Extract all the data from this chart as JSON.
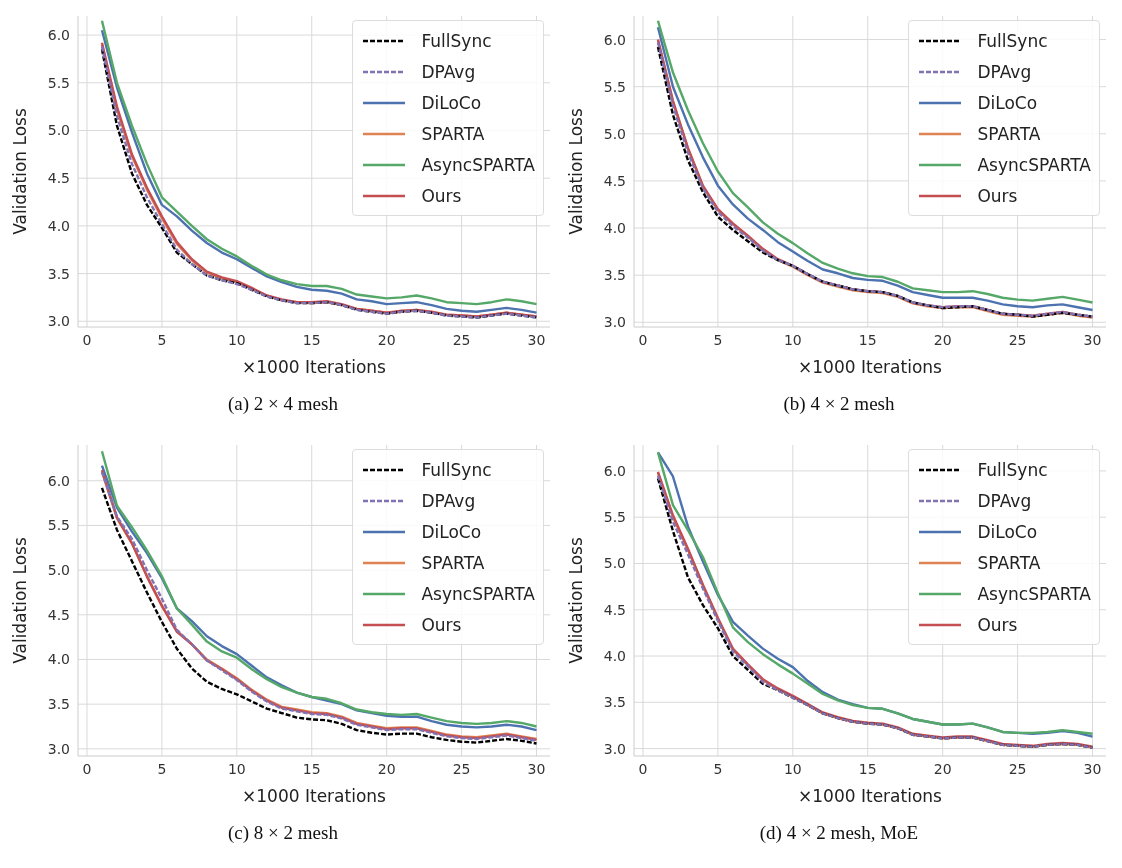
{
  "chart_data": [
    {
      "type": "line",
      "title": "(a) 2 × 4 mesh",
      "xlabel": "×1000 Iterations",
      "ylabel": "Validation Loss",
      "grid": true,
      "legend": "top right",
      "x": [
        1,
        2,
        3,
        4,
        5,
        6,
        7,
        8,
        9,
        10,
        11,
        12,
        13,
        14,
        15,
        16,
        17,
        18,
        19,
        20,
        21,
        22,
        23,
        24,
        25,
        26,
        27,
        28,
        29,
        30
      ],
      "xlim": [
        -0.6,
        30.9
      ],
      "xticks": [
        0,
        5,
        10,
        15,
        20,
        25,
        30
      ],
      "ylim": [
        2.94,
        6.2
      ],
      "yticks": [
        {
          "value": 3,
          "label": "3.0"
        },
        {
          "value": 3.5,
          "label": "3.5"
        },
        {
          "value": 4,
          "label": "4.0"
        },
        {
          "value": 4.5,
          "label": "4.5"
        },
        {
          "value": 5,
          "label": "5.0"
        },
        {
          "value": 5.5,
          "label": "5.5"
        },
        {
          "value": 6,
          "label": "6.0"
        }
      ],
      "series": [
        {
          "name": "FullSync",
          "color": "#000000",
          "line_style": "dashed",
          "values": [
            5.85,
            5.05,
            4.55,
            4.22,
            3.98,
            3.72,
            3.6,
            3.48,
            3.43,
            3.4,
            3.33,
            3.26,
            3.22,
            3.19,
            3.19,
            3.2,
            3.17,
            3.12,
            3.1,
            3.08,
            3.1,
            3.11,
            3.09,
            3.06,
            3.05,
            3.04,
            3.06,
            3.08,
            3.06,
            3.04
          ]
        },
        {
          "name": "DPAvg",
          "color": "#8172b3",
          "line_style": "dashed",
          "values": [
            5.88,
            5.15,
            4.65,
            4.3,
            4.02,
            3.75,
            3.6,
            3.48,
            3.43,
            3.39,
            3.33,
            3.26,
            3.22,
            3.19,
            3.19,
            3.2,
            3.17,
            3.12,
            3.1,
            3.08,
            3.1,
            3.11,
            3.09,
            3.06,
            3.05,
            3.04,
            3.06,
            3.08,
            3.06,
            3.04
          ]
        },
        {
          "name": "DiLoCo",
          "color": "#4c72b0",
          "line_style": "solid",
          "values": [
            6.05,
            5.45,
            4.98,
            4.55,
            4.22,
            4.1,
            3.95,
            3.82,
            3.72,
            3.65,
            3.56,
            3.47,
            3.41,
            3.36,
            3.33,
            3.32,
            3.29,
            3.23,
            3.21,
            3.18,
            3.19,
            3.2,
            3.17,
            3.13,
            3.11,
            3.1,
            3.12,
            3.14,
            3.12,
            3.09
          ]
        },
        {
          "name": "SPARTA",
          "color": "#dd8452",
          "line_style": "solid",
          "values": [
            5.9,
            5.22,
            4.73,
            4.38,
            4.08,
            3.81,
            3.64,
            3.51,
            3.45,
            3.41,
            3.34,
            3.27,
            3.22,
            3.2,
            3.19,
            3.2,
            3.17,
            3.13,
            3.11,
            3.09,
            3.1,
            3.12,
            3.09,
            3.07,
            3.06,
            3.05,
            3.07,
            3.09,
            3.07,
            3.05
          ]
        },
        {
          "name": "AsyncSPARTA",
          "color": "#55a868",
          "line_style": "solid",
          "values": [
            6.15,
            5.5,
            5.05,
            4.65,
            4.3,
            4.15,
            4.0,
            3.86,
            3.76,
            3.68,
            3.58,
            3.49,
            3.43,
            3.39,
            3.37,
            3.37,
            3.34,
            3.28,
            3.26,
            3.24,
            3.25,
            3.27,
            3.24,
            3.2,
            3.19,
            3.18,
            3.2,
            3.23,
            3.21,
            3.18
          ]
        },
        {
          "name": "Ours",
          "color": "#c44e52",
          "line_style": "solid",
          "values": [
            5.92,
            5.25,
            4.75,
            4.4,
            4.1,
            3.83,
            3.65,
            3.52,
            3.46,
            3.42,
            3.35,
            3.27,
            3.23,
            3.2,
            3.2,
            3.21,
            3.18,
            3.13,
            3.11,
            3.09,
            3.11,
            3.12,
            3.1,
            3.07,
            3.06,
            3.05,
            3.07,
            3.09,
            3.07,
            3.05
          ]
        }
      ]
    },
    {
      "type": "line",
      "title": "(b) 4 × 2 mesh",
      "xlabel": "×1000 Iterations",
      "ylabel": "Validation Loss",
      "grid": true,
      "legend": "top right",
      "x": [
        1,
        2,
        3,
        4,
        5,
        6,
        7,
        8,
        9,
        10,
        11,
        12,
        13,
        14,
        15,
        16,
        17,
        18,
        19,
        20,
        21,
        22,
        23,
        24,
        25,
        26,
        27,
        28,
        29,
        30
      ],
      "xlim": [
        -0.6,
        30.9
      ],
      "xticks": [
        0,
        5,
        10,
        15,
        20,
        25,
        30
      ],
      "ylim": [
        2.95,
        6.25
      ],
      "yticks": [
        {
          "value": 3,
          "label": "3.0"
        },
        {
          "value": 3.5,
          "label": "3.5"
        },
        {
          "value": 4,
          "label": "4.0"
        },
        {
          "value": 4.5,
          "label": "4.5"
        },
        {
          "value": 5,
          "label": "5.0"
        },
        {
          "value": 5.5,
          "label": "5.5"
        },
        {
          "value": 6,
          "label": "6.0"
        }
      ],
      "series": [
        {
          "name": "FullSync",
          "color": "#000000",
          "line_style": "dashed",
          "values": [
            5.92,
            5.2,
            4.72,
            4.38,
            4.12,
            3.98,
            3.86,
            3.74,
            3.66,
            3.6,
            3.51,
            3.43,
            3.39,
            3.35,
            3.33,
            3.32,
            3.28,
            3.21,
            3.18,
            3.15,
            3.16,
            3.17,
            3.13,
            3.09,
            3.08,
            3.06,
            3.08,
            3.1,
            3.08,
            3.06
          ]
        },
        {
          "name": "DPAvg",
          "color": "#8172b3",
          "line_style": "dashed",
          "values": [
            5.97,
            5.3,
            4.8,
            4.42,
            4.17,
            4.02,
            3.9,
            3.76,
            3.66,
            3.6,
            3.51,
            3.43,
            3.39,
            3.35,
            3.33,
            3.32,
            3.28,
            3.21,
            3.18,
            3.16,
            3.17,
            3.17,
            3.13,
            3.09,
            3.08,
            3.07,
            3.09,
            3.11,
            3.08,
            3.06
          ]
        },
        {
          "name": "DiLoCo",
          "color": "#4c72b0",
          "line_style": "solid",
          "values": [
            6.13,
            5.5,
            5.1,
            4.75,
            4.45,
            4.25,
            4.1,
            3.98,
            3.85,
            3.75,
            3.65,
            3.56,
            3.52,
            3.47,
            3.45,
            3.44,
            3.39,
            3.32,
            3.29,
            3.26,
            3.26,
            3.26,
            3.23,
            3.19,
            3.17,
            3.16,
            3.18,
            3.19,
            3.16,
            3.13
          ]
        },
        {
          "name": "SPARTA",
          "color": "#dd8452",
          "line_style": "solid",
          "values": [
            5.99,
            5.34,
            4.84,
            4.44,
            4.19,
            4.04,
            3.91,
            3.77,
            3.66,
            3.59,
            3.5,
            3.42,
            3.38,
            3.34,
            3.32,
            3.31,
            3.27,
            3.2,
            3.17,
            3.15,
            3.16,
            3.16,
            3.12,
            3.08,
            3.07,
            3.06,
            3.08,
            3.1,
            3.07,
            3.05
          ]
        },
        {
          "name": "AsyncSPARTA",
          "color": "#55a868",
          "line_style": "solid",
          "values": [
            6.2,
            5.65,
            5.25,
            4.9,
            4.6,
            4.37,
            4.22,
            4.06,
            3.94,
            3.84,
            3.73,
            3.63,
            3.57,
            3.52,
            3.49,
            3.48,
            3.43,
            3.36,
            3.34,
            3.32,
            3.32,
            3.33,
            3.3,
            3.26,
            3.24,
            3.23,
            3.25,
            3.27,
            3.24,
            3.21
          ]
        },
        {
          "name": "Ours",
          "color": "#c44e52",
          "line_style": "solid",
          "values": [
            6.0,
            5.35,
            4.85,
            4.45,
            4.2,
            4.05,
            3.92,
            3.78,
            3.67,
            3.6,
            3.51,
            3.43,
            3.39,
            3.35,
            3.33,
            3.32,
            3.28,
            3.21,
            3.18,
            3.16,
            3.17,
            3.17,
            3.13,
            3.09,
            3.08,
            3.07,
            3.09,
            3.11,
            3.08,
            3.06
          ]
        }
      ]
    },
    {
      "type": "line",
      "title": "(c) 8 × 2 mesh",
      "xlabel": "×1000 Iterations",
      "ylabel": "Validation Loss",
      "grid": true,
      "legend": "top right",
      "x": [
        1,
        2,
        3,
        4,
        5,
        6,
        7,
        8,
        9,
        10,
        11,
        12,
        13,
        14,
        15,
        16,
        17,
        18,
        19,
        20,
        21,
        22,
        23,
        24,
        25,
        26,
        27,
        28,
        29,
        30
      ],
      "xlim": [
        -0.6,
        30.9
      ],
      "xticks": [
        0,
        5,
        10,
        15,
        20,
        25,
        30
      ],
      "ylim": [
        2.92,
        6.4
      ],
      "yticks": [
        {
          "value": 3,
          "label": "3.0"
        },
        {
          "value": 3.5,
          "label": "3.5"
        },
        {
          "value": 4,
          "label": "4.0"
        },
        {
          "value": 4.5,
          "label": "4.5"
        },
        {
          "value": 5,
          "label": "5.0"
        },
        {
          "value": 5.5,
          "label": "5.5"
        },
        {
          "value": 6,
          "label": "6.0"
        }
      ],
      "series": [
        {
          "name": "FullSync",
          "color": "#000000",
          "line_style": "dashed",
          "values": [
            5.92,
            5.45,
            5.1,
            4.75,
            4.42,
            4.12,
            3.9,
            3.75,
            3.67,
            3.61,
            3.53,
            3.45,
            3.4,
            3.35,
            3.33,
            3.32,
            3.28,
            3.21,
            3.18,
            3.16,
            3.17,
            3.17,
            3.13,
            3.1,
            3.08,
            3.07,
            3.09,
            3.11,
            3.09,
            3.06
          ]
        },
        {
          "name": "DPAvg",
          "color": "#8172b3",
          "line_style": "dashed",
          "values": [
            6.1,
            5.6,
            5.35,
            5.0,
            4.68,
            4.33,
            4.17,
            3.99,
            3.88,
            3.77,
            3.64,
            3.53,
            3.45,
            3.42,
            3.39,
            3.38,
            3.34,
            3.27,
            3.24,
            3.21,
            3.22,
            3.22,
            3.18,
            3.14,
            3.12,
            3.11,
            3.13,
            3.15,
            3.12,
            3.09
          ]
        },
        {
          "name": "DiLoCo",
          "color": "#4c72b0",
          "line_style": "solid",
          "values": [
            6.17,
            5.7,
            5.43,
            5.19,
            4.91,
            4.57,
            4.43,
            4.26,
            4.15,
            4.06,
            3.93,
            3.8,
            3.71,
            3.63,
            3.58,
            3.54,
            3.5,
            3.43,
            3.4,
            3.37,
            3.36,
            3.36,
            3.31,
            3.27,
            3.25,
            3.24,
            3.25,
            3.27,
            3.25,
            3.21
          ]
        },
        {
          "name": "SPARTA",
          "color": "#dd8452",
          "line_style": "solid",
          "values": [
            6.1,
            5.58,
            5.3,
            4.93,
            4.6,
            4.32,
            4.17,
            4.0,
            3.9,
            3.79,
            3.66,
            3.55,
            3.47,
            3.44,
            3.41,
            3.4,
            3.36,
            3.29,
            3.26,
            3.23,
            3.24,
            3.24,
            3.2,
            3.16,
            3.14,
            3.13,
            3.15,
            3.17,
            3.14,
            3.11
          ]
        },
        {
          "name": "AsyncSPARTA",
          "color": "#55a868",
          "line_style": "solid",
          "values": [
            6.33,
            5.72,
            5.48,
            5.22,
            4.93,
            4.57,
            4.39,
            4.2,
            4.09,
            4.02,
            3.89,
            3.78,
            3.69,
            3.63,
            3.58,
            3.56,
            3.51,
            3.44,
            3.41,
            3.39,
            3.38,
            3.39,
            3.35,
            3.31,
            3.29,
            3.28,
            3.29,
            3.31,
            3.29,
            3.25
          ]
        },
        {
          "name": "Ours",
          "color": "#c44e52",
          "line_style": "solid",
          "values": [
            6.12,
            5.59,
            5.3,
            4.93,
            4.6,
            4.31,
            4.17,
            3.99,
            3.89,
            3.78,
            3.65,
            3.54,
            3.46,
            3.43,
            3.4,
            3.39,
            3.35,
            3.28,
            3.25,
            3.22,
            3.23,
            3.23,
            3.19,
            3.15,
            3.13,
            3.12,
            3.14,
            3.16,
            3.13,
            3.1
          ]
        }
      ]
    },
    {
      "type": "line",
      "title": "(d) 4 × 2 mesh, MoE",
      "xlabel": "×1000 Iterations",
      "ylabel": "Validation Loss",
      "grid": true,
      "legend": "top right",
      "x": [
        1,
        2,
        3,
        4,
        5,
        6,
        7,
        8,
        9,
        10,
        11,
        12,
        13,
        14,
        15,
        16,
        17,
        18,
        19,
        20,
        21,
        22,
        23,
        24,
        25,
        26,
        27,
        28,
        29,
        30
      ],
      "xlim": [
        -0.6,
        30.9
      ],
      "xticks": [
        0,
        5,
        10,
        15,
        20,
        25,
        30
      ],
      "ylim": [
        2.92,
        6.28
      ],
      "yticks": [
        {
          "value": 3,
          "label": "3.0"
        },
        {
          "value": 3.5,
          "label": "3.5"
        },
        {
          "value": 4,
          "label": "4.0"
        },
        {
          "value": 4.5,
          "label": "4.5"
        },
        {
          "value": 5,
          "label": "5.0"
        },
        {
          "value": 5.5,
          "label": "5.5"
        },
        {
          "value": 6,
          "label": "6.0"
        }
      ],
      "series": [
        {
          "name": "FullSync",
          "color": "#000000",
          "line_style": "dashed",
          "values": [
            5.92,
            5.35,
            4.85,
            4.55,
            4.3,
            4.0,
            3.85,
            3.7,
            3.63,
            3.55,
            3.47,
            3.38,
            3.33,
            3.29,
            3.27,
            3.26,
            3.22,
            3.15,
            3.13,
            3.11,
            3.12,
            3.12,
            3.08,
            3.04,
            3.03,
            3.02,
            3.04,
            3.05,
            3.04,
            3.01
          ]
        },
        {
          "name": "DPAvg",
          "color": "#8172b3",
          "line_style": "dashed",
          "values": [
            5.95,
            5.45,
            5.1,
            4.73,
            4.38,
            4.05,
            3.89,
            3.72,
            3.63,
            3.55,
            3.47,
            3.38,
            3.33,
            3.29,
            3.27,
            3.26,
            3.22,
            3.15,
            3.13,
            3.11,
            3.12,
            3.12,
            3.08,
            3.04,
            3.03,
            3.02,
            3.04,
            3.05,
            3.04,
            3.01
          ]
        },
        {
          "name": "DiLoCo",
          "color": "#4c72b0",
          "line_style": "solid",
          "values": [
            6.2,
            5.94,
            5.4,
            5.02,
            4.66,
            4.37,
            4.22,
            4.08,
            3.97,
            3.88,
            3.73,
            3.61,
            3.53,
            3.48,
            3.44,
            3.43,
            3.38,
            3.32,
            3.29,
            3.26,
            3.26,
            3.27,
            3.23,
            3.18,
            3.17,
            3.16,
            3.17,
            3.19,
            3.17,
            3.13
          ]
        },
        {
          "name": "SPARTA",
          "color": "#dd8452",
          "line_style": "solid",
          "values": [
            5.98,
            5.5,
            5.15,
            4.76,
            4.4,
            4.07,
            3.9,
            3.74,
            3.64,
            3.56,
            3.47,
            3.38,
            3.33,
            3.29,
            3.27,
            3.26,
            3.22,
            3.15,
            3.13,
            3.11,
            3.12,
            3.12,
            3.08,
            3.04,
            3.03,
            3.02,
            3.04,
            3.05,
            3.04,
            3.01
          ]
        },
        {
          "name": "AsyncSPARTA",
          "color": "#55a868",
          "line_style": "solid",
          "values": [
            6.2,
            5.63,
            5.36,
            5.07,
            4.68,
            4.31,
            4.15,
            4.02,
            3.91,
            3.81,
            3.7,
            3.59,
            3.52,
            3.47,
            3.44,
            3.43,
            3.38,
            3.32,
            3.29,
            3.26,
            3.26,
            3.27,
            3.23,
            3.18,
            3.17,
            3.17,
            3.18,
            3.2,
            3.18,
            3.16
          ]
        },
        {
          "name": "Ours",
          "color": "#c44e52",
          "line_style": "solid",
          "values": [
            5.99,
            5.52,
            5.16,
            4.77,
            4.41,
            4.08,
            3.91,
            3.75,
            3.65,
            3.57,
            3.48,
            3.39,
            3.34,
            3.3,
            3.28,
            3.27,
            3.23,
            3.16,
            3.14,
            3.12,
            3.13,
            3.13,
            3.09,
            3.05,
            3.04,
            3.03,
            3.05,
            3.06,
            3.05,
            3.02
          ]
        }
      ]
    }
  ]
}
